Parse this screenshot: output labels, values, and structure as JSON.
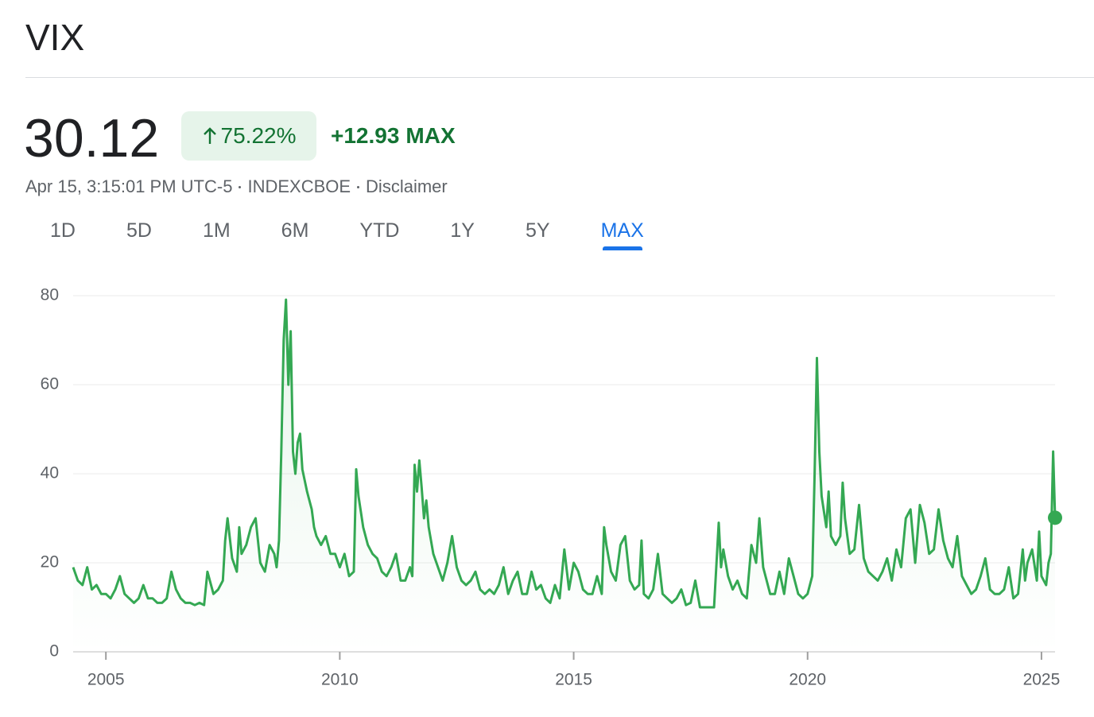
{
  "header": {
    "title": "VIX",
    "price": "30.12",
    "change_percent": "75.22%",
    "change": "+12.93",
    "period": "MAX",
    "timestamp": "Apr 15, 3:15:01 PM UTC-5",
    "exchange": "INDEXCBOE",
    "disclaimer": "Disclaimer"
  },
  "tabs": [
    "1D",
    "5D",
    "1M",
    "6M",
    "YTD",
    "1Y",
    "5Y",
    "MAX"
  ],
  "active_tab": 7,
  "chart_data": {
    "type": "line",
    "color": "#34a853",
    "x": [
      2004.3,
      2004.4,
      2004.5,
      2004.6,
      2004.7,
      2004.8,
      2004.9,
      2005,
      2005.1,
      2005.2,
      2005.3,
      2005.4,
      2005.5,
      2005.6,
      2005.7,
      2005.8,
      2005.9,
      2006,
      2006.1,
      2006.2,
      2006.3,
      2006.4,
      2006.5,
      2006.6,
      2006.7,
      2006.8,
      2006.9,
      2007,
      2007.1,
      2007.17,
      2007.3,
      2007.4,
      2007.5,
      2007.55,
      2007.6,
      2007.7,
      2007.8,
      2007.85,
      2007.9,
      2008,
      2008.1,
      2008.2,
      2008.3,
      2008.4,
      2008.5,
      2008.6,
      2008.65,
      2008.7,
      2008.75,
      2008.8,
      2008.85,
      2008.9,
      2008.95,
      2009,
      2009.05,
      2009.1,
      2009.15,
      2009.2,
      2009.3,
      2009.4,
      2009.45,
      2009.5,
      2009.6,
      2009.7,
      2009.8,
      2009.9,
      2010,
      2010.1,
      2010.2,
      2010.3,
      2010.35,
      2010.4,
      2010.5,
      2010.6,
      2010.7,
      2010.8,
      2010.9,
      2011,
      2011.1,
      2011.2,
      2011.3,
      2011.4,
      2011.5,
      2011.55,
      2011.6,
      2011.65,
      2011.7,
      2011.75,
      2011.8,
      2011.85,
      2011.9,
      2012,
      2012.1,
      2012.2,
      2012.3,
      2012.4,
      2012.5,
      2012.6,
      2012.7,
      2012.8,
      2012.9,
      2013,
      2013.1,
      2013.2,
      2013.3,
      2013.4,
      2013.5,
      2013.6,
      2013.7,
      2013.8,
      2013.9,
      2014,
      2014.1,
      2014.2,
      2014.3,
      2014.4,
      2014.5,
      2014.6,
      2014.7,
      2014.8,
      2014.9,
      2015,
      2015.1,
      2015.2,
      2015.3,
      2015.4,
      2015.5,
      2015.6,
      2015.65,
      2015.7,
      2015.8,
      2015.9,
      2016,
      2016.1,
      2016.2,
      2016.3,
      2016.4,
      2016.45,
      2016.5,
      2016.6,
      2016.7,
      2016.8,
      2016.9,
      2017,
      2017.1,
      2017.2,
      2017.3,
      2017.4,
      2017.5,
      2017.6,
      2017.7,
      2017.8,
      2017.9,
      2018,
      2018.1,
      2018.15,
      2018.2,
      2018.3,
      2018.4,
      2018.5,
      2018.6,
      2018.7,
      2018.8,
      2018.9,
      2018.97,
      2019.05,
      2019.2,
      2019.3,
      2019.4,
      2019.5,
      2019.6,
      2019.7,
      2019.8,
      2019.9,
      2020,
      2020.1,
      2020.15,
      2020.2,
      2020.25,
      2020.3,
      2020.4,
      2020.45,
      2020.5,
      2020.6,
      2020.7,
      2020.75,
      2020.8,
      2020.9,
      2021,
      2021.1,
      2021.2,
      2021.3,
      2021.4,
      2021.5,
      2021.6,
      2021.7,
      2021.8,
      2021.9,
      2022,
      2022.1,
      2022.2,
      2022.3,
      2022.4,
      2022.5,
      2022.6,
      2022.7,
      2022.8,
      2022.9,
      2023,
      2023.1,
      2023.2,
      2023.3,
      2023.4,
      2023.5,
      2023.6,
      2023.7,
      2023.8,
      2023.9,
      2024,
      2024.1,
      2024.2,
      2024.3,
      2024.4,
      2024.5,
      2024.6,
      2024.65,
      2024.7,
      2024.8,
      2024.9,
      2024.95,
      2025,
      2025.1,
      2025.15,
      2025.2,
      2025.25,
      2025.29
    ],
    "values": [
      19,
      16,
      15,
      19,
      14,
      15,
      13,
      13,
      12,
      14,
      17,
      13,
      12,
      11,
      12,
      15,
      12,
      12,
      11,
      11,
      12,
      18,
      14,
      12,
      11,
      11,
      10.5,
      11,
      10.5,
      18,
      13,
      14,
      16,
      25,
      30,
      21,
      18,
      28,
      22,
      24,
      28,
      30,
      20,
      18,
      24,
      22,
      19,
      25,
      45,
      70,
      79.1,
      60,
      72,
      45,
      40,
      47,
      49,
      41,
      36,
      32,
      28,
      26,
      24,
      26,
      22,
      22,
      19,
      22,
      17,
      18,
      41,
      35,
      28,
      24,
      22,
      21,
      18,
      17,
      19,
      22,
      16,
      16,
      19,
      17,
      42,
      36,
      43,
      37,
      30,
      34,
      28,
      22,
      19,
      16,
      20,
      26,
      19,
      16,
      15,
      16,
      18,
      14,
      13,
      14,
      13,
      15,
      19,
      13,
      16,
      18,
      13,
      13,
      18,
      14,
      15,
      12,
      11,
      15,
      12,
      23,
      14,
      20,
      18,
      14,
      13,
      13,
      17,
      13,
      28,
      24,
      18,
      16,
      24,
      26,
      16,
      14,
      15,
      25,
      13,
      12,
      14,
      22,
      13,
      12,
      11,
      12,
      14,
      10.5,
      11,
      16,
      10,
      10,
      10,
      10,
      29,
      19,
      23,
      17,
      14,
      16,
      13,
      12,
      24,
      20,
      30,
      19,
      13,
      13,
      18,
      13,
      21,
      17,
      13,
      12,
      13,
      17,
      40,
      66,
      45,
      35,
      28,
      36,
      26,
      24,
      26,
      38,
      30,
      22,
      23,
      33,
      21,
      18,
      17,
      16,
      18,
      21,
      16,
      23,
      19,
      30,
      32,
      20,
      33,
      29,
      22,
      23,
      32,
      25,
      21,
      19,
      26,
      17,
      15,
      13,
      14,
      17,
      21,
      14,
      13,
      13,
      14,
      19,
      12,
      13,
      23,
      16,
      20,
      23,
      16,
      27,
      17,
      15,
      20,
      22,
      45,
      30.12
    ],
    "xlim": [
      2004.3,
      2025.29
    ],
    "xticks": [
      2005,
      2010,
      2015,
      2020,
      2025
    ],
    "ylim": [
      0,
      80
    ],
    "yticks": [
      0,
      20,
      40,
      60,
      80
    ],
    "grid": true,
    "last_point_marker": true
  }
}
